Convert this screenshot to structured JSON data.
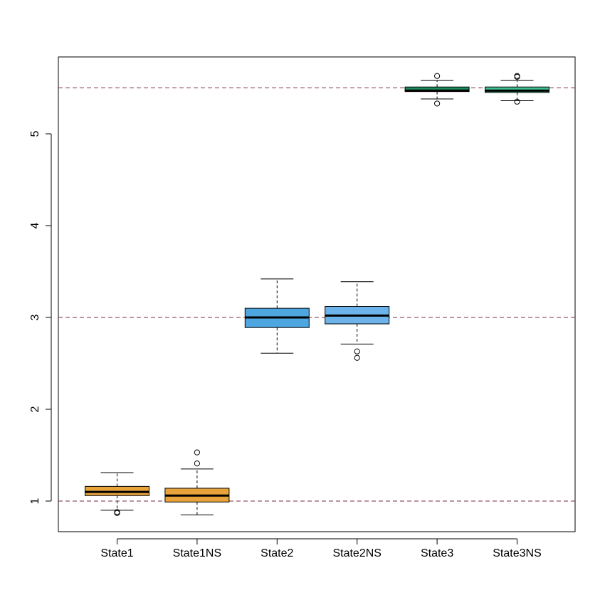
{
  "chart_data": {
    "type": "boxplot",
    "title": "",
    "xlabel": "",
    "ylabel": "",
    "ylim": [
      0.665,
      6.3
    ],
    "y_ticks": [
      1,
      2,
      3,
      4,
      5
    ],
    "y_tick_labels": [
      "1",
      "2",
      "3",
      "4",
      "5"
    ],
    "reference_lines": [
      1.0,
      3.0,
      5.5
    ],
    "reference_line_color": "#7a2e3a",
    "grid": false,
    "legend": "none",
    "categories": [
      "State1",
      "State1NS",
      "State2",
      "State2NS",
      "State3",
      "State3NS"
    ],
    "boxes": [
      {
        "label": "State1",
        "color": "#E8A33A",
        "whisker_low": 0.9,
        "q1": 1.06,
        "median": 1.1,
        "q3": 1.16,
        "whisker_high": 1.31,
        "outliers": [
          0.88,
          0.87
        ]
      },
      {
        "label": "State1NS",
        "color": "#E8A33A",
        "whisker_low": 0.85,
        "q1": 0.99,
        "median": 1.06,
        "q3": 1.14,
        "whisker_high": 1.35,
        "outliers": [
          1.41,
          1.53
        ]
      },
      {
        "label": "State2",
        "color": "#4EA6E0",
        "whisker_low": 2.61,
        "q1": 2.89,
        "median": 3.0,
        "q3": 3.1,
        "whisker_high": 3.42,
        "outliers": []
      },
      {
        "label": "State2NS",
        "color": "#6CB3EA",
        "whisker_low": 2.71,
        "q1": 2.93,
        "median": 3.02,
        "q3": 3.12,
        "whisker_high": 3.39,
        "outliers": [
          2.63,
          2.56
        ]
      },
      {
        "label": "State3",
        "color": "#1D8A5C",
        "whisker_low": 5.38,
        "q1": 5.46,
        "median": 5.47,
        "q3": 5.51,
        "whisker_high": 5.58,
        "outliers": [
          5.63,
          5.33
        ]
      },
      {
        "label": "State3NS",
        "color": "#3DBE8E",
        "whisker_low": 5.36,
        "q1": 5.45,
        "median": 5.47,
        "q3": 5.51,
        "whisker_high": 5.58,
        "outliers": [
          5.63,
          5.62,
          5.35
        ]
      }
    ]
  }
}
